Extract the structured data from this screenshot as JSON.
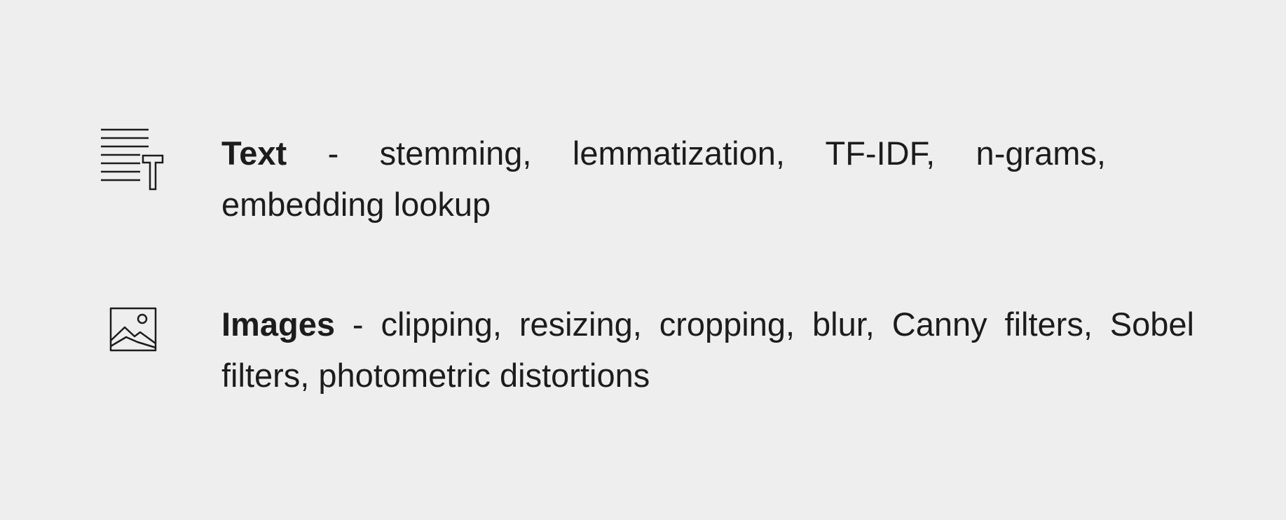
{
  "items": [
    {
      "icon": "text-lines-icon",
      "term": "Text",
      "description": " - stemming, lemmatization, TF-IDF, n-grams, embedding lookup"
    },
    {
      "icon": "image-icon",
      "term": "Images",
      "description": " - clipping, resizing, cropping, blur, Canny filters, Sobel filters, photometric distortions"
    }
  ],
  "colors": {
    "background": "#eeeeee",
    "text": "#1c1c1c"
  }
}
